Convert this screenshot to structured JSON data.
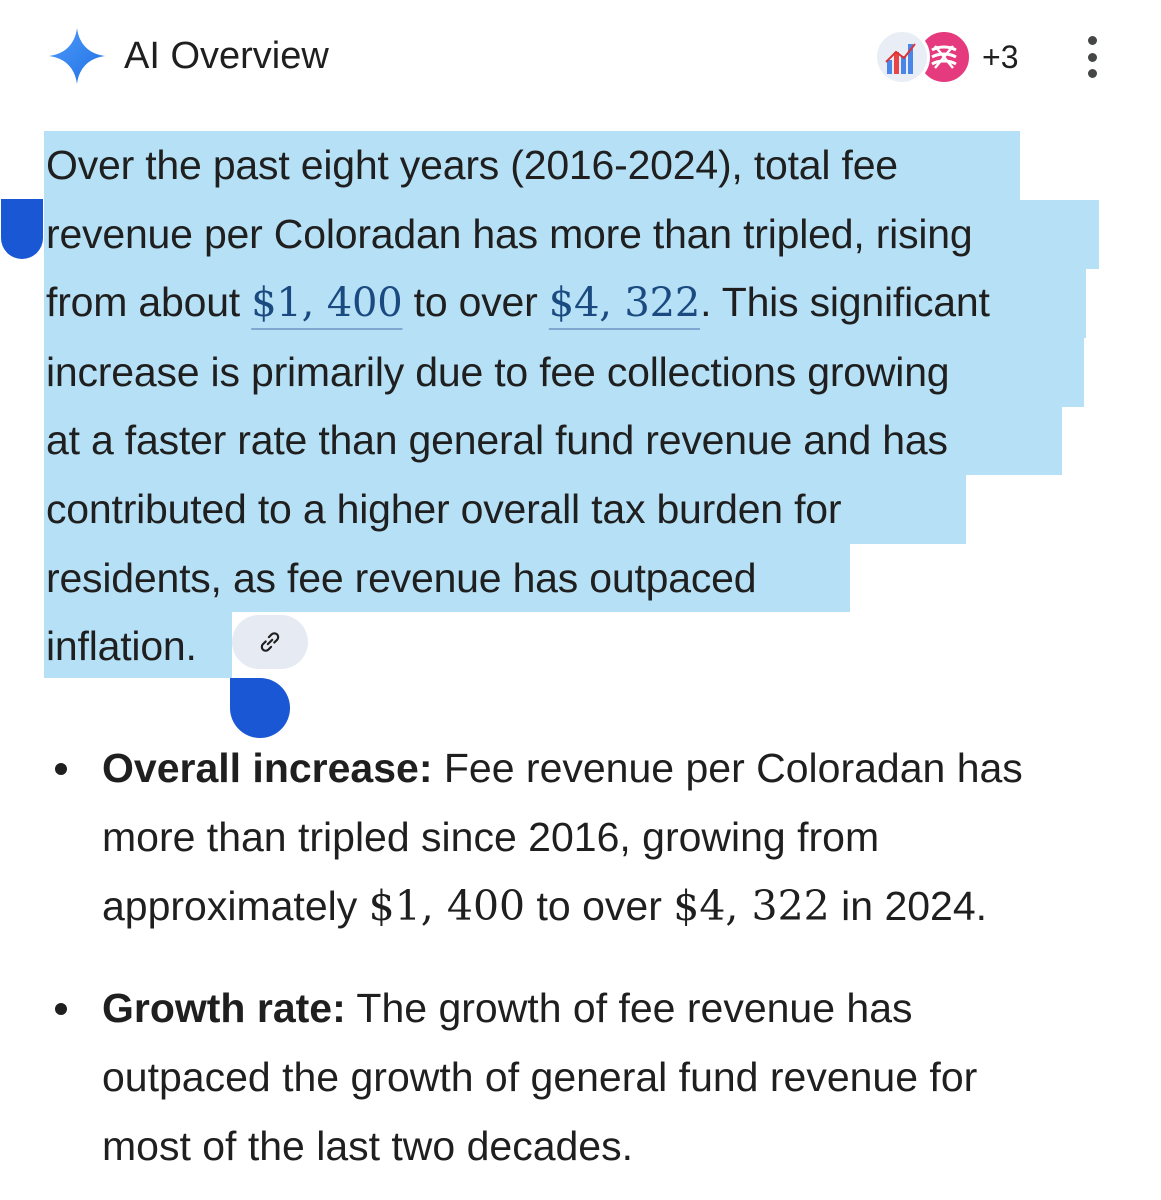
{
  "header": {
    "title": "AI Overview",
    "sparkle_icon": "sparkle-icon",
    "sources_more": "+3",
    "menu_icon": "more-vert-icon"
  },
  "summary": {
    "line1": "Over the past eight years (2016-2024), total fee",
    "line2": "revenue per Coloradan has more than tripled, rising",
    "line3_pre": "from about ",
    "amount_start": "$1, 400",
    "line3_mid": " to over ",
    "amount_end": "$4, 322",
    "line3_post": ". This significant",
    "line4": "increase is primarily due to fee collections growing",
    "line5": "at a faster rate than general fund revenue and has",
    "line6": "contributed to a higher overall tax burden for",
    "line7": "residents, as fee revenue has outpaced",
    "line8": "inflation."
  },
  "bullets": [
    {
      "label": "Overall increase:",
      "line1": " Fee revenue per Coloradan has",
      "line2": "more than tripled since 2016, growing from",
      "line3_pre": "approximately ",
      "amount_start": "$1, 400",
      "line3_mid": " to over ",
      "amount_end": "$4, 322",
      "line3_post": " in 2024."
    },
    {
      "label": "Growth rate:",
      "line1": " The growth of fee revenue has",
      "line2": "outpaced the growth of general fund revenue for",
      "line3": "most of the last two decades."
    }
  ],
  "colors": {
    "selection": "#b6e0f5",
    "selection_handle": "#1a57d4",
    "sparkle": "#2f7ef0"
  }
}
